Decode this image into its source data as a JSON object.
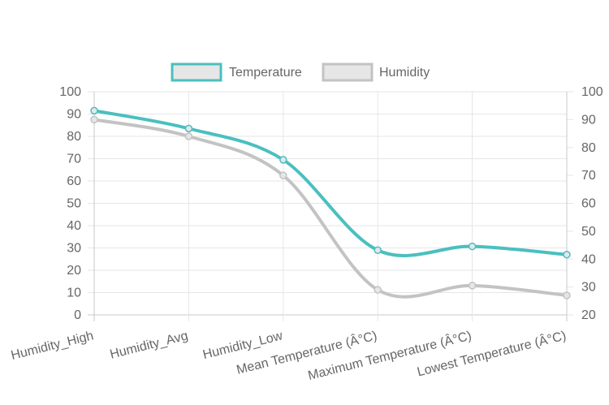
{
  "chart_data": {
    "type": "line",
    "categories": [
      "Humidity_High",
      "Humidity_Avg",
      "Humidity_Low",
      "Mean Temperature (Â°C)",
      "Maximum Temperature (Â°C)",
      "Lowest Temperature (Â°C)"
    ],
    "series": [
      {
        "name": "Temperature",
        "axis": "left",
        "color": "#4bbfbf",
        "values": [
          91.5,
          83.5,
          69.5,
          29,
          30.7,
          27
        ]
      },
      {
        "name": "Humidity",
        "axis": "right",
        "color": "#c3c3c3",
        "values": [
          90,
          84,
          70,
          29,
          30.5,
          27
        ]
      }
    ],
    "left_axis": {
      "ylim": [
        0,
        100
      ],
      "ticks": [
        "0",
        "10",
        "20",
        "30",
        "40",
        "50",
        "60",
        "70",
        "80",
        "90",
        "100"
      ]
    },
    "right_axis": {
      "ylim": [
        20,
        100
      ],
      "ticks": [
        "20",
        "30",
        "40",
        "50",
        "60",
        "70",
        "80",
        "90",
        "100"
      ]
    },
    "grid": true,
    "legend": "top-center",
    "title": "",
    "xlabel": "",
    "ylabel": ""
  }
}
